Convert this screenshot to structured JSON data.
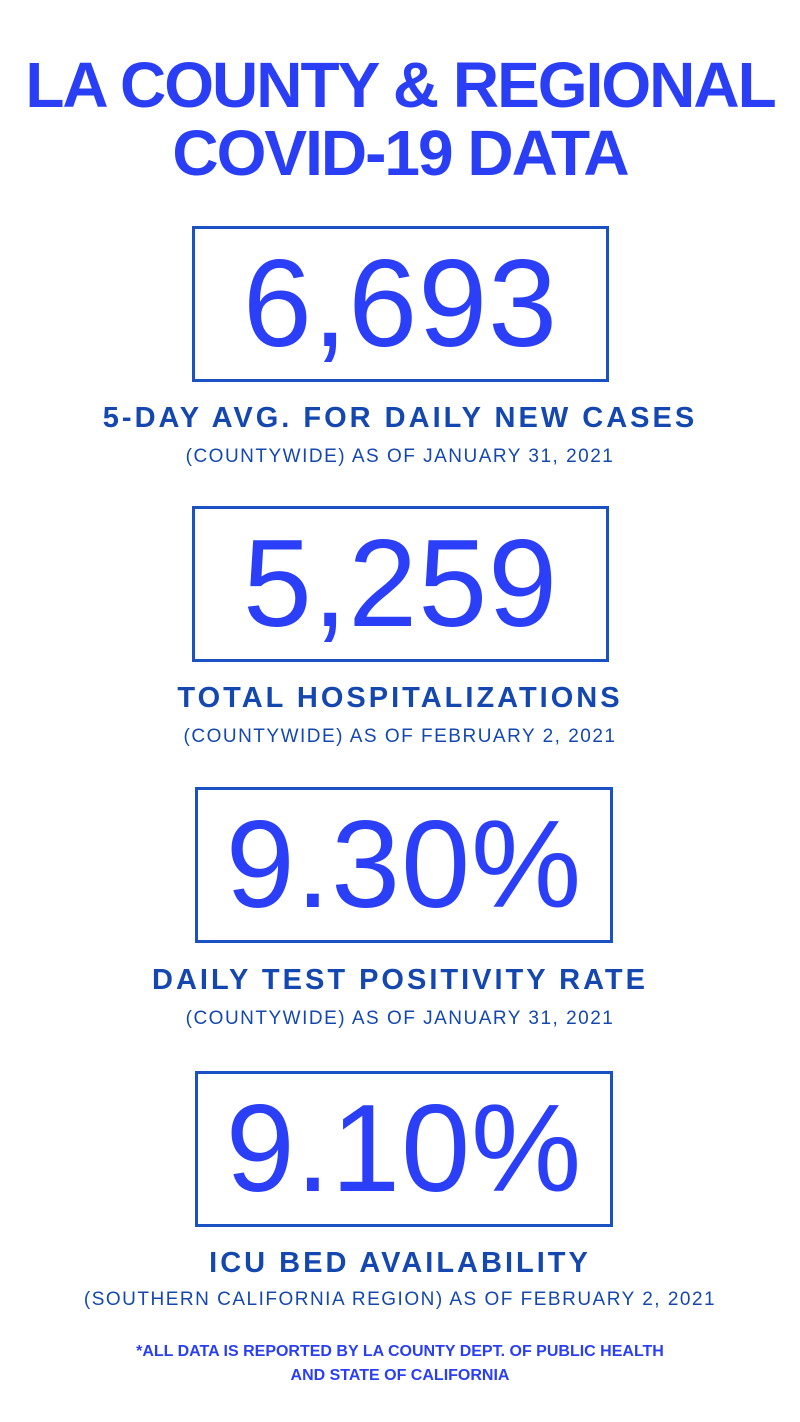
{
  "title": {
    "line1": "LA COUNTY & REGIONAL",
    "line2": "COVID-19 DATA"
  },
  "stats": [
    {
      "value": "6,693",
      "label": "5-DAY AVG. FOR DAILY NEW CASES",
      "sublabel": "(COUNTYWIDE) AS OF JANUARY 31, 2021"
    },
    {
      "value": "5,259",
      "label": "TOTAL HOSPITALIZATIONS",
      "sublabel": "(COUNTYWIDE) AS OF FEBRUARY 2, 2021"
    },
    {
      "value": "9.30%",
      "label": "DAILY TEST POSITIVITY RATE",
      "sublabel": "(COUNTYWIDE) AS OF JANUARY 31, 2021"
    },
    {
      "value": "9.10%",
      "label": "ICU BED AVAILABILITY",
      "sublabel": "(SOUTHERN CALIFORNIA REGION) AS OF FEBRUARY 2, 2021"
    }
  ],
  "footnote": {
    "line1": "*ALL DATA IS REPORTED BY LA COUNTY DEPT. OF PUBLIC HEALTH",
    "line2": "AND STATE OF CALIFORNIA"
  },
  "colors": {
    "title": "#2a3ff5",
    "numbers": "#2b3ff8",
    "box_border": "#1a52c4",
    "labels": "#1448b0"
  }
}
